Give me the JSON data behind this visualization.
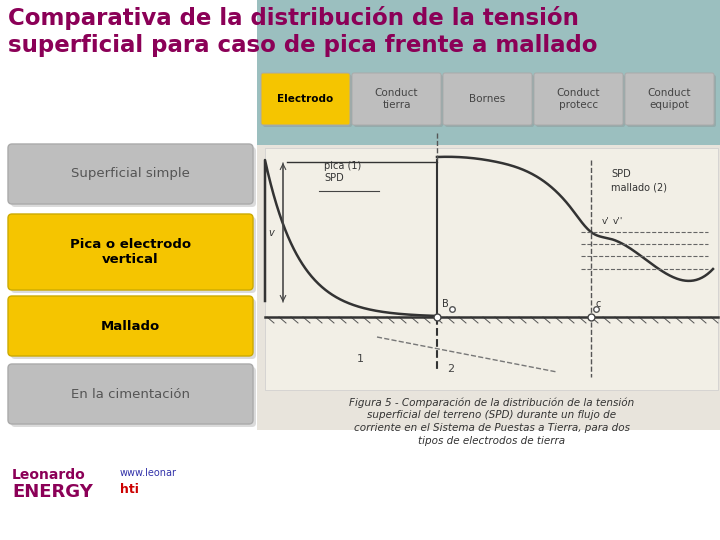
{
  "title_line1": "Comparativa de la distribución de la tensión",
  "title_line2": "superficial para caso de pica frente a mallado",
  "title_color": "#8B0057",
  "title_fontsize": 16.5,
  "bg_color": "#FFFFFF",
  "teal_bg": "#9BBFBF",
  "nav_buttons": [
    {
      "label": "Electrodo",
      "color": "#F5C500",
      "text_color": "#000000"
    },
    {
      "label": "Conduct\ntierra",
      "color": "#BEBEBE",
      "text_color": "#444444"
    },
    {
      "label": "Bornes",
      "color": "#BEBEBE",
      "text_color": "#444444"
    },
    {
      "label": "Conduct\nprotecc",
      "color": "#BEBEBE",
      "text_color": "#444444"
    },
    {
      "label": "Conduct\nequipot",
      "color": "#BEBEBE",
      "text_color": "#444444"
    }
  ],
  "left_buttons": [
    {
      "label": "Superficial simple",
      "color": "#BEBEBE",
      "text_color": "#555555",
      "bold": false
    },
    {
      "label": "Pica o electrodo\nvertical",
      "color": "#F5C500",
      "text_color": "#000000",
      "bold": true
    },
    {
      "label": "Mallado",
      "color": "#F5C500",
      "text_color": "#000000",
      "bold": true
    },
    {
      "label": "En la cimentación",
      "color": "#BEBEBE",
      "text_color": "#555555",
      "bold": false
    }
  ],
  "caption_lines": [
    "Figura 5 - Comparación de la distribución de la tensión",
    "superficial del terreno (SPD) durante un flujo de",
    "corriente en el Sistema de Puestas a Tierra, para dos",
    "tipos de electrodos de tierra"
  ],
  "logo_text1": "Leonardo",
  "logo_text2": "ENERGY",
  "url_text": "www.leonar",
  "url_suffix": "hti"
}
